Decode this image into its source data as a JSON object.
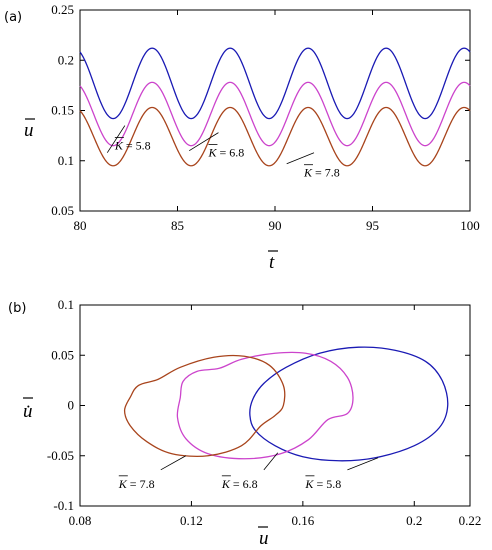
{
  "chart_data": [
    {
      "panel_label": "(a)",
      "type": "line",
      "xlabel": "t",
      "ylabel": "u",
      "xlim": [
        80,
        100
      ],
      "ylim": [
        0.05,
        0.25
      ],
      "x_ticks": [
        "80",
        "85",
        "90",
        "95",
        "100"
      ],
      "y_ticks": [
        "0.05",
        "0.1",
        "0.15",
        "0.2",
        "0.25"
      ],
      "series": [
        {
          "name": "K = 5.8",
          "color": "#1a1ab4",
          "period": 4.0,
          "phase_peak_t": 83.7,
          "min": 0.142,
          "max": 0.212
        },
        {
          "name": "K = 6.8",
          "color": "#cc44cc",
          "period": 4.0,
          "phase_peak_t": 83.7,
          "min": 0.115,
          "max": 0.178
        },
        {
          "name": "K = 7.8",
          "color": "#a8441c",
          "period": 4.0,
          "phase_peak_t": 83.7,
          "min": 0.095,
          "max": 0.153
        }
      ],
      "annotations": [
        {
          "text": "K = 5.8",
          "bar": "K",
          "x": 81.8,
          "y": 0.128
        },
        {
          "text": "K = 6.8",
          "bar": "K",
          "x": 86.0,
          "y": 0.128
        },
        {
          "text": "K = 7.8",
          "bar": "K",
          "x": 91.1,
          "y": 0.11
        }
      ]
    },
    {
      "panel_label": "(b)",
      "type": "line",
      "xlabel": "u",
      "ylabel": "u̇",
      "xlim": [
        0.08,
        0.22
      ],
      "ylim": [
        -0.1,
        0.1
      ],
      "x_ticks": [
        "0.08",
        "0.12",
        "0.16",
        "0.2",
        "0.22"
      ],
      "y_ticks": [
        "0.1",
        "0.05",
        "0",
        "-0.05",
        "-0.1"
      ],
      "series": [
        {
          "name": "K = 5.8",
          "color": "#1a1ab4",
          "points": [
            [
              0.142,
              0.006
            ],
            [
              0.146,
              0.022
            ],
            [
              0.154,
              0.038
            ],
            [
              0.166,
              0.052
            ],
            [
              0.18,
              0.058
            ],
            [
              0.193,
              0.055
            ],
            [
              0.204,
              0.044
            ],
            [
              0.21,
              0.025
            ],
            [
              0.212,
              0.0
            ],
            [
              0.209,
              -0.022
            ],
            [
              0.2,
              -0.04
            ],
            [
              0.186,
              -0.052
            ],
            [
              0.173,
              -0.055
            ],
            [
              0.16,
              -0.051
            ],
            [
              0.15,
              -0.04
            ],
            [
              0.143,
              -0.025
            ],
            [
              0.141,
              -0.01
            ],
            [
              0.142,
              0.006
            ]
          ]
        },
        {
          "name": "K = 6.8",
          "color": "#cc44cc",
          "points": [
            [
              0.117,
              0.024
            ],
            [
              0.122,
              0.034
            ],
            [
              0.13,
              0.037
            ],
            [
              0.138,
              0.046
            ],
            [
              0.15,
              0.052
            ],
            [
              0.161,
              0.052
            ],
            [
              0.17,
              0.044
            ],
            [
              0.176,
              0.028
            ],
            [
              0.178,
              0.008
            ],
            [
              0.176,
              -0.008
            ],
            [
              0.169,
              -0.014
            ],
            [
              0.162,
              -0.034
            ],
            [
              0.152,
              -0.048
            ],
            [
              0.139,
              -0.053
            ],
            [
              0.126,
              -0.048
            ],
            [
              0.118,
              -0.033
            ],
            [
              0.115,
              -0.012
            ],
            [
              0.116,
              0.008
            ],
            [
              0.117,
              0.024
            ]
          ]
        },
        {
          "name": "K = 7.8",
          "color": "#a8441c",
          "points": [
            [
              0.098,
              0.008
            ],
            [
              0.101,
              0.02
            ],
            [
              0.108,
              0.026
            ],
            [
              0.116,
              0.038
            ],
            [
              0.128,
              0.048
            ],
            [
              0.139,
              0.049
            ],
            [
              0.148,
              0.04
            ],
            [
              0.153,
              0.02
            ],
            [
              0.153,
              0.0
            ],
            [
              0.15,
              -0.01
            ],
            [
              0.145,
              -0.02
            ],
            [
              0.138,
              -0.04
            ],
            [
              0.126,
              -0.05
            ],
            [
              0.113,
              -0.048
            ],
            [
              0.104,
              -0.036
            ],
            [
              0.098,
              -0.02
            ],
            [
              0.096,
              -0.005
            ],
            [
              0.098,
              0.008
            ]
          ]
        }
      ],
      "annotations": [
        {
          "text": "K = 7.8",
          "bar": "K",
          "x": 0.107,
          "y": -0.073
        },
        {
          "text": "K = 6.8",
          "bar": "K",
          "x": 0.143,
          "y": -0.073
        },
        {
          "text": "K = 5.8",
          "bar": "K",
          "x": 0.17,
          "y": -0.073
        }
      ]
    }
  ]
}
